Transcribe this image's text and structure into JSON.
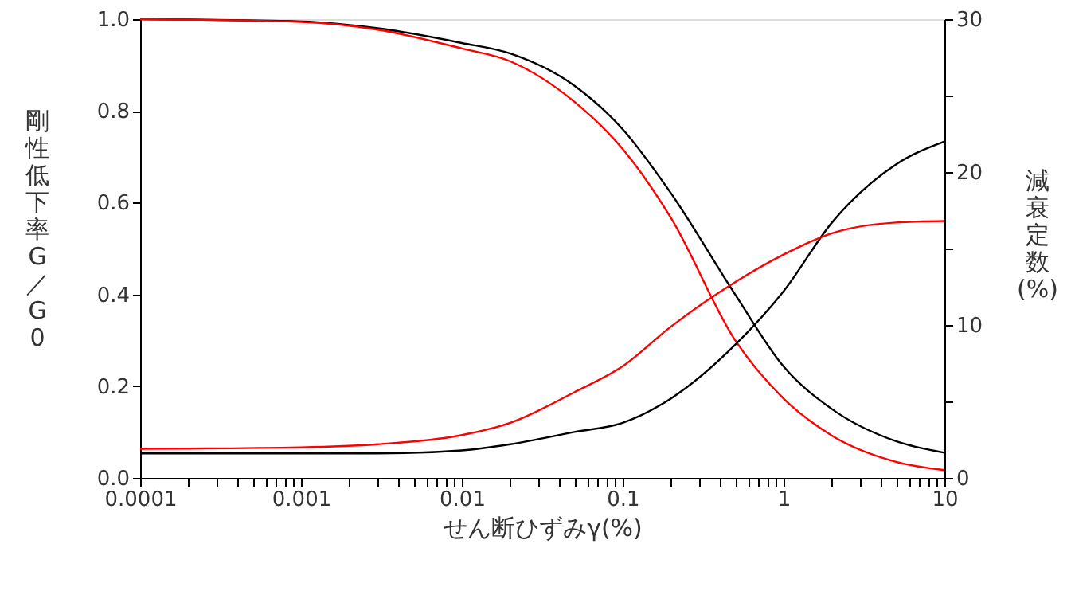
{
  "chart_data": {
    "type": "line",
    "xlabel": "せん断ひずみγ(%)",
    "ylabel": "剛性低下率G／G0",
    "y2label": "減衰定数(%)",
    "x": [
      0.0001,
      0.001,
      0.003,
      0.01,
      0.02,
      0.05,
      0.1,
      0.2,
      0.5,
      1,
      2,
      5,
      10
    ],
    "log": "x",
    "grid": false,
    "marker": "none",
    "line_style": "solid",
    "xlim": [
      0.0001,
      10
    ],
    "xticks": [
      0.0001,
      {
        "value": 0.0002,
        "label": null
      },
      {
        "value": 0.0003,
        "label": null
      },
      {
        "value": 0.0004,
        "label": null
      },
      {
        "value": 0.0005,
        "label": null
      },
      {
        "value": 0.0006,
        "label": null
      },
      {
        "value": 0.0007,
        "label": null
      },
      {
        "value": 0.0008,
        "label": null
      },
      {
        "value": 0.0009,
        "label": null
      },
      0.001,
      {
        "value": 0.002,
        "label": null
      },
      {
        "value": 0.003,
        "label": null
      },
      {
        "value": 0.004,
        "label": null
      },
      {
        "value": 0.005,
        "label": null
      },
      {
        "value": 0.006,
        "label": null
      },
      {
        "value": 0.007,
        "label": null
      },
      {
        "value": 0.008,
        "label": null
      },
      {
        "value": 0.009,
        "label": null
      },
      0.01,
      {
        "value": 0.02,
        "label": null
      },
      {
        "value": 0.03,
        "label": null
      },
      {
        "value": 0.04,
        "label": null
      },
      {
        "value": 0.05,
        "label": null
      },
      {
        "value": 0.06,
        "label": null
      },
      {
        "value": 0.07,
        "label": null
      },
      {
        "value": 0.08,
        "label": null
      },
      {
        "value": 0.09,
        "label": null
      },
      0.1,
      {
        "value": 0.2,
        "label": null
      },
      {
        "value": 0.3,
        "label": null
      },
      {
        "value": 0.4,
        "label": null
      },
      {
        "value": 0.5,
        "label": null
      },
      {
        "value": 0.6,
        "label": null
      },
      {
        "value": 0.7,
        "label": null
      },
      {
        "value": 0.8,
        "label": null
      },
      {
        "value": 0.9,
        "label": null
      },
      1,
      {
        "value": 2,
        "label": null
      },
      {
        "value": 3,
        "label": null
      },
      {
        "value": 4,
        "label": null
      },
      {
        "value": 5,
        "label": null
      },
      {
        "value": 6,
        "label": null
      },
      {
        "value": 7,
        "label": null
      },
      {
        "value": 8,
        "label": null
      },
      {
        "value": 9,
        "label": null
      },
      10
    ],
    "ylim": [
      0,
      1
    ],
    "yticks": [
      {
        "value": 0,
        "label": "0.0"
      },
      0.2,
      0.4,
      0.6,
      0.8,
      {
        "value": 1,
        "label": "1.0"
      }
    ],
    "y2lim": [
      0,
      30
    ],
    "y2ticks": [
      0,
      {
        "value": 5,
        "label": null
      },
      10,
      {
        "value": 15,
        "label": null
      },
      20,
      {
        "value": 25,
        "label": null
      },
      30
    ],
    "series": [
      {
        "color": "#000000",
        "values": [
          1.0,
          0.995,
          0.98,
          0.948,
          0.925,
          0.855,
          0.76,
          0.62,
          0.4,
          0.243,
          0.15,
          0.08,
          0.055
        ]
      },
      {
        "color": "#ff0000",
        "values": [
          1.0,
          0.994,
          0.977,
          0.936,
          0.908,
          0.82,
          0.717,
          0.566,
          0.3,
          0.173,
          0.092,
          0.035,
          0.017
        ]
      },
      {
        "color": "#000000",
        "axis": "y2",
        "values": [
          1.6,
          1.6,
          1.6,
          1.8,
          2.2,
          3.0,
          3.6,
          5.2,
          8.7,
          12.2,
          16.7,
          20.5,
          22.0
        ]
      },
      {
        "color": "#ff0000",
        "axis": "y2",
        "values": [
          1.9,
          2.0,
          2.2,
          2.8,
          3.6,
          5.6,
          7.3,
          9.9,
          12.8,
          14.6,
          16.0,
          16.7,
          16.8
        ]
      }
    ]
  }
}
